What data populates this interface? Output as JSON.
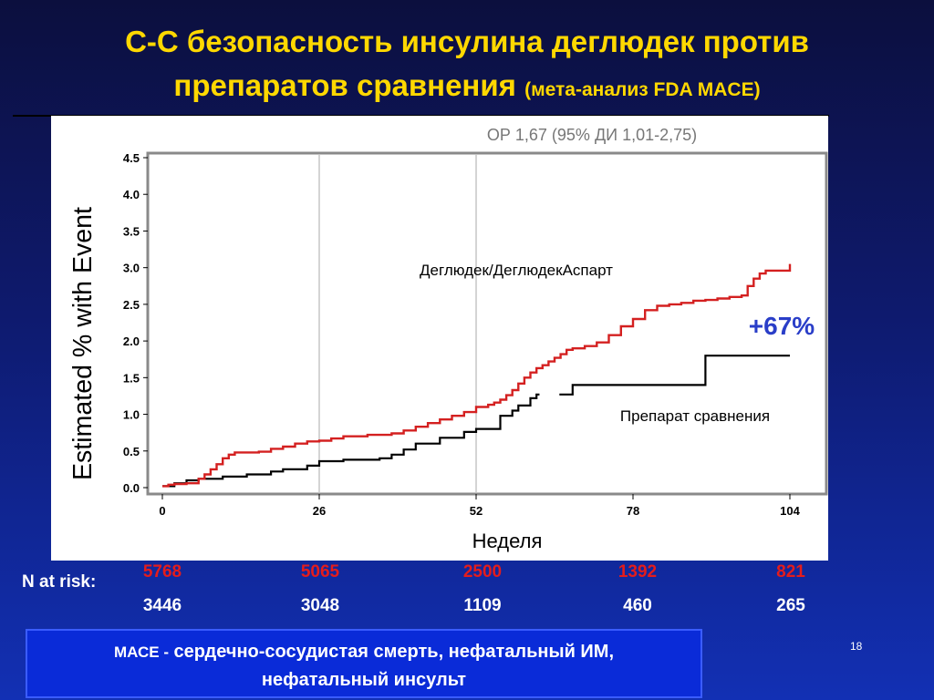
{
  "slide": {
    "title_line1": "С-С безопасность инсулина деглюдек против",
    "title_line2": "препаратов сравнения",
    "title_note": "(мета-анализ FDA MACE)",
    "page_number": "18"
  },
  "risk_table": {
    "label": "N at risk:",
    "weeks": [
      0,
      26,
      52,
      78,
      104
    ],
    "degludec": [
      "5768",
      "5065",
      "2500",
      "1392",
      "821"
    ],
    "comparator": [
      "3446",
      "3048",
      "1109",
      "460",
      "265"
    ]
  },
  "footer": {
    "abbr": "МАСЕ -",
    "line1": "сердечно-сосудистая смерть, нефатальный ИМ,",
    "line2": "нефатальный инсульт"
  },
  "colors": {
    "degludec_line": "#d42020",
    "comparator_line": "#000000",
    "title": "#ffd800",
    "risk_red": "#e41c1c",
    "plus67": "#2a3ec8"
  },
  "chart_data": {
    "type": "line",
    "step": true,
    "hr_text": "ОР 1,67 (95% ДИ 1,01-2,75)",
    "xlabel": "Неделя",
    "ylabel": "Estimated % with Event",
    "xlim": [
      0,
      104
    ],
    "ylim": [
      0,
      4.5
    ],
    "x_ticks": [
      0,
      26,
      52,
      78,
      104
    ],
    "y_ticks": [
      "0.0",
      "0.5",
      "1.0",
      "1.5",
      "2.0",
      "2.5",
      "3.0",
      "3.5",
      "4.0",
      "4.5"
    ],
    "vertical_gridlines": [
      26,
      52
    ],
    "grid": false,
    "series": [
      {
        "name": "Деглюдек/ДеглюдекАспарт",
        "x": [
          0,
          1,
          2,
          4,
          6,
          7,
          8,
          9,
          10,
          11,
          12,
          16,
          18,
          20,
          22,
          24,
          26,
          28,
          30,
          34,
          38,
          40,
          42,
          44,
          46,
          48,
          50,
          52,
          54,
          55,
          56,
          57,
          58,
          59,
          60,
          61,
          62,
          63,
          64,
          65,
          66,
          67,
          68,
          70,
          72,
          74,
          76,
          78,
          80,
          82,
          84,
          86,
          88,
          90,
          92,
          94,
          96,
          97,
          98,
          99,
          100,
          104
        ],
        "y": [
          0.02,
          0.04,
          0.05,
          0.06,
          0.12,
          0.18,
          0.25,
          0.32,
          0.4,
          0.45,
          0.48,
          0.49,
          0.53,
          0.56,
          0.6,
          0.63,
          0.64,
          0.67,
          0.7,
          0.72,
          0.74,
          0.78,
          0.83,
          0.88,
          0.93,
          0.98,
          1.03,
          1.1,
          1.13,
          1.16,
          1.2,
          1.26,
          1.33,
          1.42,
          1.5,
          1.57,
          1.63,
          1.67,
          1.72,
          1.77,
          1.82,
          1.88,
          1.9,
          1.93,
          1.98,
          2.08,
          2.2,
          2.3,
          2.42,
          2.48,
          2.5,
          2.52,
          2.55,
          2.56,
          2.58,
          2.6,
          2.62,
          2.75,
          2.85,
          2.92,
          2.96,
          3.05
        ]
      },
      {
        "name": "Препарат  сравнения",
        "x": [
          0,
          2,
          4,
          6,
          10,
          14,
          18,
          20,
          24,
          26,
          30,
          36,
          38,
          40,
          42,
          46,
          50,
          52,
          56,
          58,
          59,
          61,
          62,
          66,
          68,
          72,
          76,
          78,
          80,
          82,
          84,
          86,
          88,
          90,
          92,
          104
        ],
        "y": [
          0.02,
          0.06,
          0.1,
          0.12,
          0.15,
          0.18,
          0.22,
          0.25,
          0.3,
          0.36,
          0.38,
          0.4,
          0.45,
          0.52,
          0.6,
          0.68,
          0.76,
          0.8,
          0.98,
          1.05,
          1.12,
          1.22,
          1.27,
          1.27,
          1.4,
          1.4,
          1.4,
          1.4,
          1.4,
          1.4,
          1.4,
          1.4,
          1.4,
          1.8,
          1.8,
          1.8
        ]
      }
    ],
    "annotations": [
      {
        "text": "+67%"
      }
    ]
  }
}
